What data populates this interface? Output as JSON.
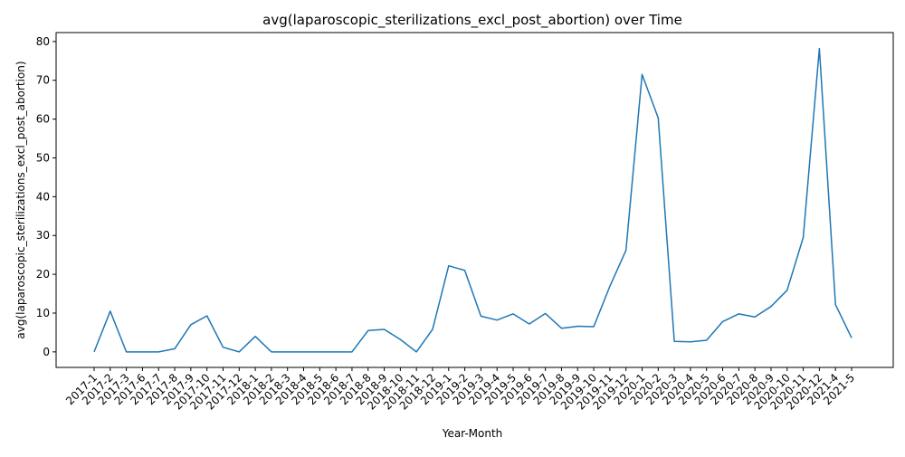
{
  "chart_data": {
    "type": "line",
    "title": "avg(laparoscopic_sterilizations_excl_post_abortion) over Time",
    "xlabel": "Year-Month",
    "ylabel": "avg(laparoscopic_sterilizations_excl_post_abortion)",
    "ylim": [
      -4,
      82.3
    ],
    "yticks": [
      0,
      10,
      20,
      30,
      40,
      50,
      60,
      70,
      80
    ],
    "grid": false,
    "legend": "none",
    "line_color": "#1f77b4",
    "categories": [
      "2017-1",
      "2017-2",
      "2017-3",
      "2017-6",
      "2017-7",
      "2017-8",
      "2017-9",
      "2017-10",
      "2017-11",
      "2017-12",
      "2018-1",
      "2018-2",
      "2018-3",
      "2018-4",
      "2018-5",
      "2018-6",
      "2018-7",
      "2018-8",
      "2018-9",
      "2018-10",
      "2018-11",
      "2018-12",
      "2019-1",
      "2019-2",
      "2019-3",
      "2019-4",
      "2019-5",
      "2019-6",
      "2019-7",
      "2019-8",
      "2019-9",
      "2019-10",
      "2019-11",
      "2019-12",
      "2020-1",
      "2020-2",
      "2020-3",
      "2020-4",
      "2020-5",
      "2020-6",
      "2020-7",
      "2020-8",
      "2020-9",
      "2020-10",
      "2020-11",
      "2020-12",
      "2021-4",
      "2021-5"
    ],
    "values": [
      0,
      10.5,
      0,
      0,
      0,
      0.8,
      7.0,
      9.3,
      1.2,
      0,
      4.0,
      0,
      0,
      0,
      0,
      0,
      0,
      5.5,
      5.8,
      3.2,
      0,
      5.8,
      22.2,
      21.0,
      9.2,
      8.2,
      9.8,
      7.2,
      9.9,
      6.1,
      6.6,
      6.5,
      16.9,
      26.2,
      71.5,
      60.3,
      2.7,
      2.6,
      3.0,
      7.8,
      9.8,
      9.0,
      11.7,
      15.9,
      29.5,
      78.2,
      12.2,
      3.6
    ]
  }
}
